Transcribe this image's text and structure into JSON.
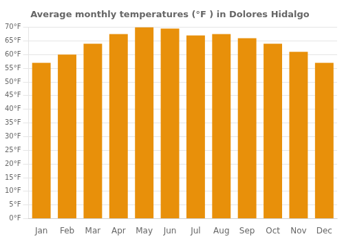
{
  "chart_data": {
    "type": "bar",
    "title": "Average monthly temperatures (°F ) in Dolores Hidalgo",
    "categories": [
      "Jan",
      "Feb",
      "Mar",
      "Apr",
      "May",
      "Jun",
      "Jul",
      "Aug",
      "Sep",
      "Oct",
      "Nov",
      "Dec"
    ],
    "values": [
      57,
      60,
      64,
      67.5,
      70,
      69.5,
      67,
      67.5,
      66,
      64,
      61,
      57
    ],
    "color": "#E8900A",
    "ylim": [
      0,
      70
    ],
    "yticks": [
      {
        "value": 0,
        "label": "0°F"
      },
      {
        "value": 5,
        "label": "5°F"
      },
      {
        "value": 10,
        "label": "10°F"
      },
      {
        "value": 15,
        "label": "15°F"
      },
      {
        "value": 20,
        "label": "20°F"
      },
      {
        "value": 25,
        "label": "25°F"
      },
      {
        "value": 30,
        "label": "30°F"
      },
      {
        "value": 35,
        "label": "35°F"
      },
      {
        "value": 40,
        "label": "40°F"
      },
      {
        "value": 45,
        "label": "45°F"
      },
      {
        "value": 50,
        "label": "50°F"
      },
      {
        "value": 55,
        "label": "55°F"
      },
      {
        "value": 60,
        "label": "60°F"
      },
      {
        "value": 65,
        "label": "65°F"
      },
      {
        "value": 70,
        "label": "70°F"
      }
    ],
    "grid": true
  }
}
